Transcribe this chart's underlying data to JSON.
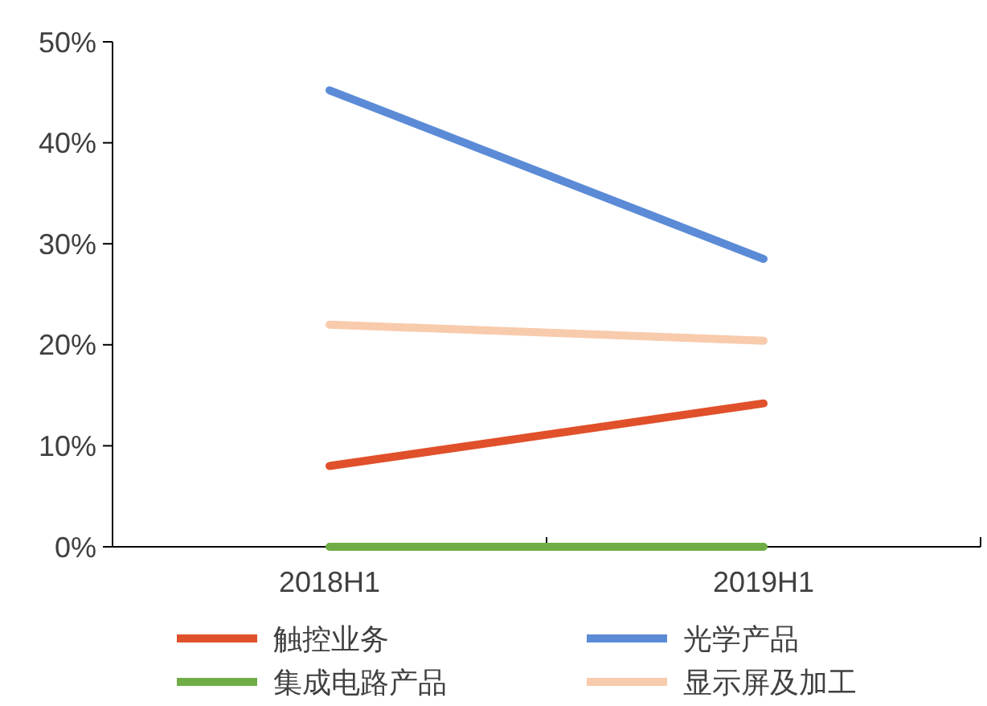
{
  "chart_data": {
    "type": "line",
    "categories": [
      "2018H1",
      "2019H1"
    ],
    "series": [
      {
        "name": "触控业务",
        "color": "#e0502a",
        "values": [
          8.0,
          14.2
        ]
      },
      {
        "name": "光学产品",
        "color": "#5b8bd6",
        "values": [
          45.2,
          28.5
        ]
      },
      {
        "name": "集成电路产品",
        "color": "#70ad47",
        "values": [
          0,
          0
        ]
      },
      {
        "name": "显示屏及加工",
        "color": "#f8cbad",
        "values": [
          22.0,
          20.4
        ]
      }
    ],
    "ylim": [
      0,
      50
    ],
    "yticks": [
      {
        "value": 0,
        "label": "0%"
      },
      {
        "value": 10,
        "label": "10%"
      },
      {
        "value": 20,
        "label": "20%"
      },
      {
        "value": 30,
        "label": "30%"
      },
      {
        "value": 40,
        "label": "40%"
      },
      {
        "value": 50,
        "label": "50%"
      }
    ],
    "grid": false,
    "legend": "bottom",
    "marker": "none",
    "line_style": "solid"
  }
}
